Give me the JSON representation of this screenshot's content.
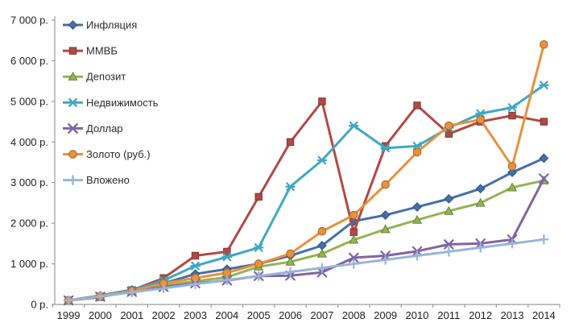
{
  "chart_data": {
    "type": "line",
    "title": "",
    "xlabel": "",
    "ylabel": "",
    "grid": false,
    "legend_position": "top-left",
    "categories": [
      "1999",
      "2000",
      "2001",
      "2002",
      "2003",
      "2004",
      "2005",
      "2006",
      "2007",
      "2008",
      "2009",
      "2010",
      "2011",
      "2012",
      "2013",
      "2014"
    ],
    "y_axis": {
      "min": 0,
      "max": 7000,
      "step": 1000,
      "tick_labels": [
        "0 р.",
        "1 000 р.",
        "2 000 р.",
        "3 000 р.",
        "4 000 р.",
        "5 000 р.",
        "6 000 р.",
        "7 000 р."
      ]
    },
    "series": [
      {
        "name": "Инфляция",
        "color": "#4470A6",
        "marker": "diamond",
        "values": [
          100,
          220,
          360,
          520,
          750,
          870,
          1000,
          1200,
          1450,
          2050,
          2200,
          2400,
          2600,
          2850,
          3250,
          3600
        ]
      },
      {
        "name": "ММВБ",
        "color": "#B04A45",
        "marker": "square",
        "values": [
          100,
          180,
          350,
          650,
          1200,
          1300,
          2650,
          4000,
          5000,
          1780,
          3900,
          4900,
          4200,
          4500,
          4650,
          4500
        ]
      },
      {
        "name": "Депозит",
        "color": "#94B454",
        "marker": "triangle",
        "values": [
          100,
          210,
          340,
          470,
          570,
          670,
          930,
          1050,
          1250,
          1590,
          1850,
          2080,
          2300,
          2500,
          2880,
          3050
        ]
      },
      {
        "name": "Недвижимость",
        "color": "#3FA8C4",
        "marker": "star",
        "values": [
          100,
          190,
          350,
          590,
          950,
          1170,
          1400,
          2900,
          3550,
          4400,
          3850,
          3900,
          4350,
          4700,
          4850,
          5400
        ]
      },
      {
        "name": "Доллар",
        "color": "#8064A2",
        "marker": "x",
        "values": [
          100,
          190,
          310,
          430,
          520,
          590,
          700,
          710,
          790,
          1150,
          1200,
          1310,
          1480,
          1500,
          1600,
          3100
        ]
      },
      {
        "name": "Золото (руб.)",
        "color": "#E8913D",
        "marker": "circle",
        "values": [
          100,
          200,
          330,
          520,
          650,
          780,
          1000,
          1250,
          1800,
          2200,
          2950,
          3750,
          4400,
          4550,
          3400,
          6400
        ]
      },
      {
        "name": "Вложено",
        "color": "#98B4D8",
        "marker": "plus",
        "values": [
          100,
          200,
          300,
          400,
          500,
          600,
          700,
          800,
          900,
          1000,
          1100,
          1200,
          1300,
          1400,
          1500,
          1600
        ]
      }
    ]
  }
}
